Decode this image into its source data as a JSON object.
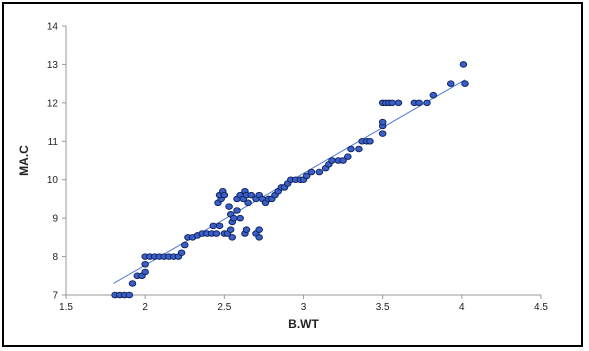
{
  "chart_data": {
    "type": "scatter",
    "title": "",
    "xlabel": "B.WT",
    "ylabel": "MA.C",
    "xlim": [
      1.5,
      4.5
    ],
    "ylim": [
      7,
      14
    ],
    "xticks": [
      "1.5",
      "2",
      "2.5",
      "3",
      "3.5",
      "4",
      "4.5"
    ],
    "yticks": [
      "7",
      "8",
      "9",
      "10",
      "11",
      "12",
      "13",
      "14"
    ],
    "grid": false,
    "legend": "none",
    "colors": {
      "points": "#3a5fc8",
      "point_edge": "#0d1f55",
      "trendline": "#4a78d8",
      "axis": "#9a9a9a"
    },
    "trendline": {
      "x": [
        1.8,
        4.02
      ],
      "y": [
        7.3,
        12.6
      ]
    },
    "series": [
      {
        "points": [
          [
            1.81,
            7.0
          ],
          [
            1.84,
            7.0
          ],
          [
            1.87,
            7.0
          ],
          [
            1.9,
            7.0
          ],
          [
            1.92,
            7.3
          ],
          [
            1.95,
            7.5
          ],
          [
            1.98,
            7.5
          ],
          [
            2.0,
            7.6
          ],
          [
            2.0,
            7.8
          ],
          [
            2.0,
            8.0
          ],
          [
            2.03,
            8.0
          ],
          [
            2.06,
            8.0
          ],
          [
            2.09,
            8.0
          ],
          [
            2.12,
            8.0
          ],
          [
            2.15,
            8.0
          ],
          [
            2.18,
            8.0
          ],
          [
            2.21,
            8.0
          ],
          [
            2.23,
            8.1
          ],
          [
            2.25,
            8.3
          ],
          [
            2.27,
            8.5
          ],
          [
            2.3,
            8.5
          ],
          [
            2.33,
            8.55
          ],
          [
            2.36,
            8.6
          ],
          [
            2.39,
            8.6
          ],
          [
            2.42,
            8.6
          ],
          [
            2.43,
            8.8
          ],
          [
            2.45,
            8.6
          ],
          [
            2.47,
            8.8
          ],
          [
            2.5,
            8.6
          ],
          [
            2.52,
            8.6
          ],
          [
            2.55,
            8.5
          ],
          [
            2.54,
            8.7
          ],
          [
            2.46,
            9.4
          ],
          [
            2.48,
            9.5
          ],
          [
            2.47,
            9.6
          ],
          [
            2.49,
            9.7
          ],
          [
            2.5,
            9.6
          ],
          [
            2.53,
            9.3
          ],
          [
            2.54,
            9.1
          ],
          [
            2.55,
            8.9
          ],
          [
            2.56,
            9.0
          ],
          [
            2.58,
            9.2
          ],
          [
            2.6,
            9.0
          ],
          [
            2.58,
            9.5
          ],
          [
            2.6,
            9.6
          ],
          [
            2.62,
            9.5
          ],
          [
            2.63,
            9.7
          ],
          [
            2.64,
            9.6
          ],
          [
            2.65,
            9.4
          ],
          [
            2.63,
            8.6
          ],
          [
            2.64,
            8.7
          ],
          [
            2.7,
            8.6
          ],
          [
            2.72,
            8.5
          ],
          [
            2.72,
            8.7
          ],
          [
            2.67,
            9.6
          ],
          [
            2.7,
            9.5
          ],
          [
            2.72,
            9.6
          ],
          [
            2.74,
            9.5
          ],
          [
            2.76,
            9.4
          ],
          [
            2.78,
            9.5
          ],
          [
            2.8,
            9.5
          ],
          [
            2.82,
            9.6
          ],
          [
            2.84,
            9.7
          ],
          [
            2.86,
            9.8
          ],
          [
            2.88,
            9.8
          ],
          [
            2.9,
            9.9
          ],
          [
            2.92,
            10.0
          ],
          [
            2.95,
            10.0
          ],
          [
            2.98,
            10.0
          ],
          [
            3.0,
            10.0
          ],
          [
            3.02,
            10.1
          ],
          [
            3.05,
            10.2
          ],
          [
            3.1,
            10.2
          ],
          [
            3.14,
            10.3
          ],
          [
            3.16,
            10.4
          ],
          [
            3.18,
            10.5
          ],
          [
            3.22,
            10.5
          ],
          [
            3.25,
            10.5
          ],
          [
            3.28,
            10.6
          ],
          [
            3.3,
            10.8
          ],
          [
            3.35,
            10.8
          ],
          [
            3.37,
            11.0
          ],
          [
            3.4,
            11.0
          ],
          [
            3.42,
            11.0
          ],
          [
            3.5,
            11.2
          ],
          [
            3.5,
            11.4
          ],
          [
            3.5,
            11.5
          ],
          [
            3.5,
            12.0
          ],
          [
            3.52,
            12.0
          ],
          [
            3.54,
            12.0
          ],
          [
            3.56,
            12.0
          ],
          [
            3.6,
            12.0
          ],
          [
            3.7,
            12.0
          ],
          [
            3.73,
            12.0
          ],
          [
            3.78,
            12.0
          ],
          [
            3.82,
            12.2
          ],
          [
            3.93,
            12.5
          ],
          [
            4.02,
            12.5
          ],
          [
            4.01,
            13.0
          ]
        ]
      }
    ]
  }
}
